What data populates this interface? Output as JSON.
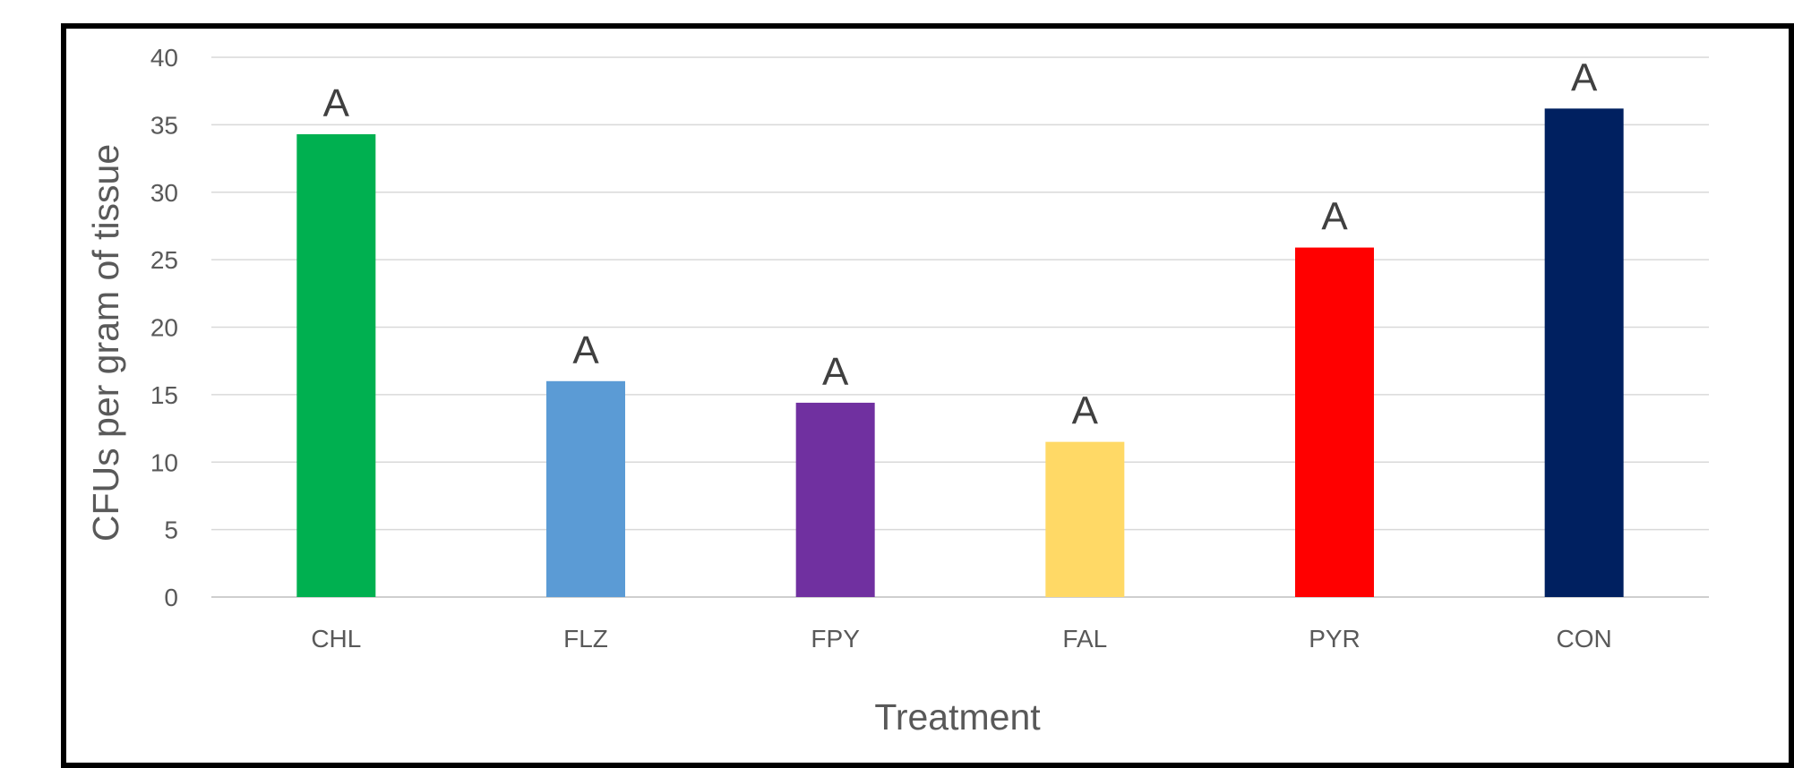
{
  "chart_data": {
    "type": "bar",
    "title": "",
    "xlabel": "Treatment",
    "ylabel": "CFUs per gram of tissue",
    "ylim": [
      0,
      40
    ],
    "yticks": [
      0,
      5,
      10,
      15,
      20,
      25,
      30,
      35,
      40
    ],
    "grid": true,
    "legend": "none",
    "categories": [
      "CHL",
      "FLZ",
      "FPY",
      "FAL",
      "PYR",
      "CON"
    ],
    "values": [
      34.3,
      16.0,
      14.4,
      11.5,
      25.9,
      36.2
    ],
    "data_labels": [
      "A",
      "A",
      "A",
      "A",
      "A",
      "A"
    ],
    "colors": [
      "#00B050",
      "#5B9BD5",
      "#7030A0",
      "#FFD966",
      "#FF0000",
      "#002060"
    ],
    "frame_color": "#000000",
    "grid_color": "#D9D9D9"
  }
}
